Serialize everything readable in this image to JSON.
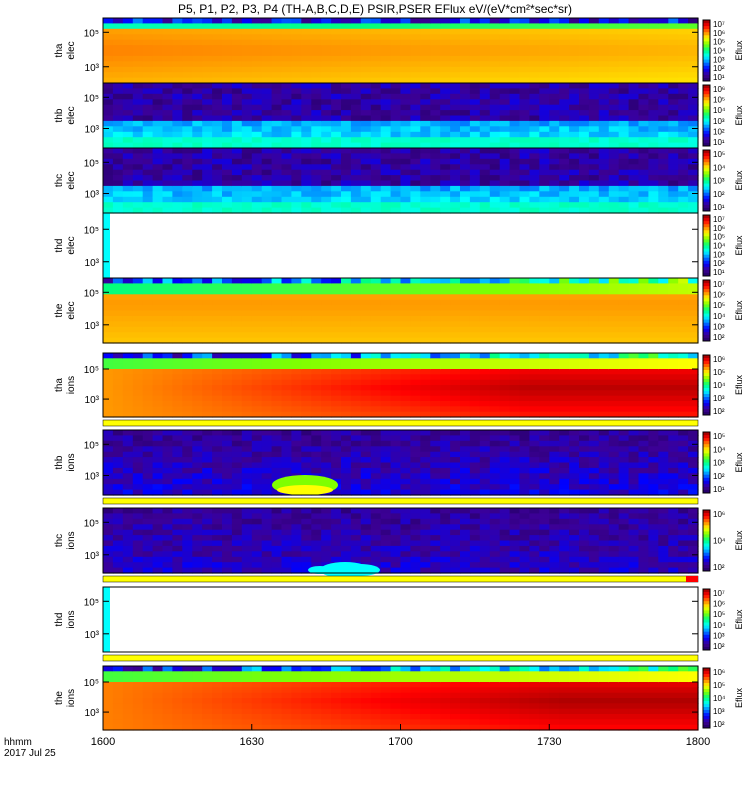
{
  "title": "P5, P1, P2, P3, P4 (TH-A,B,C,D,E) PSIR,PSER EFlux eV/(eV*cm²*sec*sr)",
  "x_axis": {
    "tick_labels": [
      "1600",
      "1630",
      "1700",
      "1730",
      "1800"
    ],
    "label_line1": "hhmm",
    "label_line2": "2017 Jul 25"
  },
  "colorbar_label": "Eflux",
  "chart_data": {
    "type": "heatmap",
    "title": "P5, P1, P2, P3, P4 (TH-A,B,C,D,E) PSIR,PSER EFlux eV/(eV*cm²*sec*sr)",
    "x_range": [
      "16:00",
      "18:00"
    ],
    "x_ticks": [
      "1600",
      "1630",
      "1700",
      "1730",
      "1800"
    ],
    "y_scale": "log",
    "panels": [
      {
        "label": [
          "tha",
          "elec"
        ],
        "y_ticks": [
          "10⁵",
          "10³"
        ],
        "cbar_ticks": [
          "10⁷",
          "10⁶",
          "10⁵",
          "10⁴",
          "10³",
          "10²",
          "10¹"
        ],
        "cbar_label": "Eflux",
        "has_flag": false,
        "has_sat_bar": false
      },
      {
        "label": [
          "thb",
          "elec"
        ],
        "y_ticks": [
          "10⁵",
          "10³"
        ],
        "cbar_ticks": [
          "10⁶",
          "10⁵",
          "10⁴",
          "10³",
          "10²",
          "10¹"
        ],
        "cbar_label": "Eflux",
        "has_flag": false,
        "has_sat_bar": false
      },
      {
        "label": [
          "thc",
          "elec"
        ],
        "y_ticks": [
          "10⁵",
          "10³"
        ],
        "cbar_ticks": [
          "10⁵",
          "10⁴",
          "10³",
          "10²",
          "10¹"
        ],
        "cbar_label": "Eflux",
        "has_flag": false,
        "has_sat_bar": false
      },
      {
        "label": [
          "thd",
          "elec"
        ],
        "y_ticks": [
          "10⁵",
          "10³"
        ],
        "cbar_ticks": [
          "10⁷",
          "10⁶",
          "10⁵",
          "10⁴",
          "10³",
          "10²",
          "10¹"
        ],
        "cbar_label": "Eflux",
        "has_flag": false,
        "has_sat_bar": false
      },
      {
        "label": [
          "the",
          "elec"
        ],
        "y_ticks": [
          "10⁵",
          "10³"
        ],
        "cbar_ticks": [
          "10⁷",
          "10⁶",
          "10⁵",
          "10⁴",
          "10³",
          "10²"
        ],
        "cbar_label": "Eflux",
        "has_flag": false,
        "has_sat_bar": false
      },
      {
        "label": [
          "tha",
          "ions"
        ],
        "y_ticks": [
          "10⁵",
          "10³"
        ],
        "cbar_ticks": [
          "10⁶",
          "10⁵",
          "10⁴",
          "10³",
          "10²"
        ],
        "cbar_label": "Eflux",
        "has_flag": true,
        "has_sat_bar": false
      },
      {
        "label": [
          "thb",
          "ions"
        ],
        "y_ticks": [
          "10⁵",
          "10³"
        ],
        "cbar_ticks": [
          "10⁵",
          "10⁴",
          "10³",
          "10²",
          "10¹"
        ],
        "cbar_label": "Eflux",
        "has_flag": true,
        "has_sat_bar": false
      },
      {
        "label": [
          "thc",
          "ions"
        ],
        "y_ticks": [
          "10⁵",
          "10³"
        ],
        "cbar_ticks": [
          "10⁶",
          "10⁴",
          "10²"
        ],
        "cbar_label": "Eflux",
        "has_flag": true,
        "has_sat_bar": true
      },
      {
        "label": [
          "thd",
          "ions"
        ],
        "y_ticks": [
          "10⁵",
          "10³"
        ],
        "cbar_ticks": [
          "10⁷",
          "10⁶",
          "10⁵",
          "10⁴",
          "10³",
          "10²"
        ],
        "cbar_label": "Eflux",
        "has_flag": true,
        "has_sat_bar": false
      },
      {
        "label": [
          "the",
          "ions"
        ],
        "y_ticks": [
          "10⁵",
          "10³"
        ],
        "cbar_ticks": [
          "10⁶",
          "10⁵",
          "10⁴",
          "10³",
          "10²"
        ],
        "cbar_label": "Eflux",
        "has_flag": false,
        "has_sat_bar": false
      }
    ],
    "colors": {
      "flag_yellow": "#ffff00",
      "flag_red": "#ff0000",
      "colorbar": [
        "#ffffff",
        "#200060",
        "#3c0096",
        "#0000ff",
        "#0080ff",
        "#00ffff",
        "#00ff80",
        "#80ff00",
        "#ffff00",
        "#ff8000",
        "#ff0000",
        "#8c0000"
      ]
    }
  }
}
